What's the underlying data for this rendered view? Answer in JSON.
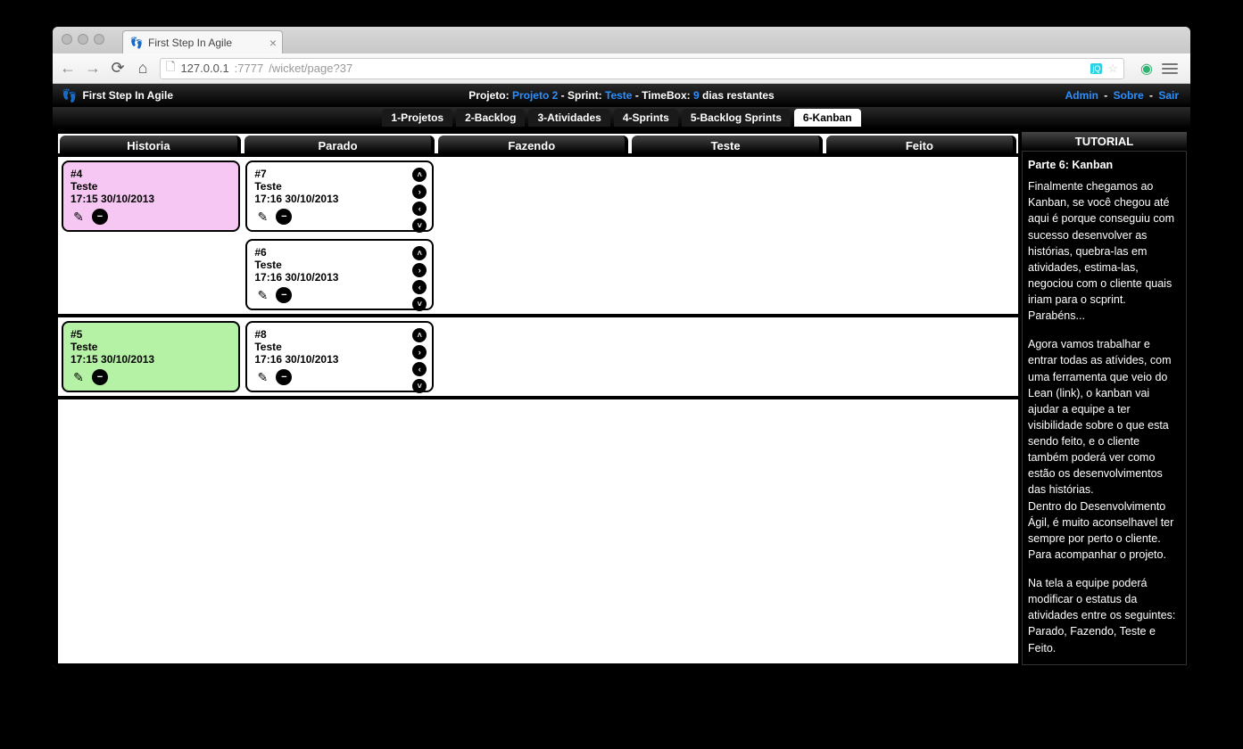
{
  "browser": {
    "tab_title": "First Step In Agile",
    "url_host": "127.0.0.1",
    "url_port": ":7777",
    "url_path": "/wicket/page?37"
  },
  "header": {
    "app_name": "First Step In Agile",
    "projeto_label": "Projeto:",
    "projeto_value": "Projeto 2",
    "sprint_label": "- Sprint:",
    "sprint_value": "Teste",
    "timebox_label": "- TimeBox:",
    "timebox_value": "9",
    "timebox_suffix": "dias restantes",
    "admin": "Admin",
    "sobre": "Sobre",
    "sair": "Sair",
    "sep": " - "
  },
  "nav_tabs": [
    {
      "label": "1-Projetos",
      "active": false
    },
    {
      "label": "2-Backlog",
      "active": false
    },
    {
      "label": "3-Atividades",
      "active": false
    },
    {
      "label": "4-Sprints",
      "active": false
    },
    {
      "label": "5-Backlog Sprints",
      "active": false
    },
    {
      "label": "6-Kanban",
      "active": true
    }
  ],
  "kanban": {
    "columns": [
      "Historia",
      "Parado",
      "Fazendo",
      "Teste",
      "Feito"
    ],
    "rows": [
      {
        "history": {
          "id": "#4",
          "title": "Teste",
          "time": "17:15 30/10/2013",
          "color": "pink"
        },
        "parado": [
          {
            "id": "#7",
            "title": "Teste",
            "time": "17:16 30/10/2013"
          },
          {
            "id": "#6",
            "title": "Teste",
            "time": "17:16 30/10/2013"
          }
        ]
      },
      {
        "history": {
          "id": "#5",
          "title": "Teste",
          "time": "17:15 30/10/2013",
          "color": "green"
        },
        "parado": [
          {
            "id": "#8",
            "title": "Teste",
            "time": "17:16 30/10/2013"
          }
        ]
      }
    ]
  },
  "tutorial": {
    "title": "TUTORIAL",
    "subtitle": "Parte 6: Kanban",
    "paragraphs": [
      "Finalmente chegamos ao Kanban, se você chegou até aqui é porque conseguiu com sucesso desenvolver as histórias, quebra-las em atividades, estima-las, negociou com o cliente quais iriam para o scprint. Parabéns...",
      "Agora vamos trabalhar e entrar todas as atívides, com uma ferramenta que veio do Lean (link), o kanban vai ajudar a equipe a ter visibilidade sobre o que esta sendo feito, e o cliente também poderá ver como estão os desenvolvimentos das histórias.\nDentro do Desenvolvimento Ágil, é muito aconselhavel ter sempre por perto o cliente. Para acompanhar o projeto.",
      "Na tela a equipe poderá modificar o estatus da atividades entre os seguintes: Parado, Fazendo, Teste e Feito."
    ]
  },
  "colors": {
    "link_blue": "#2b90ff",
    "pink": "#f7c7f4",
    "green": "#b6f2a6"
  }
}
